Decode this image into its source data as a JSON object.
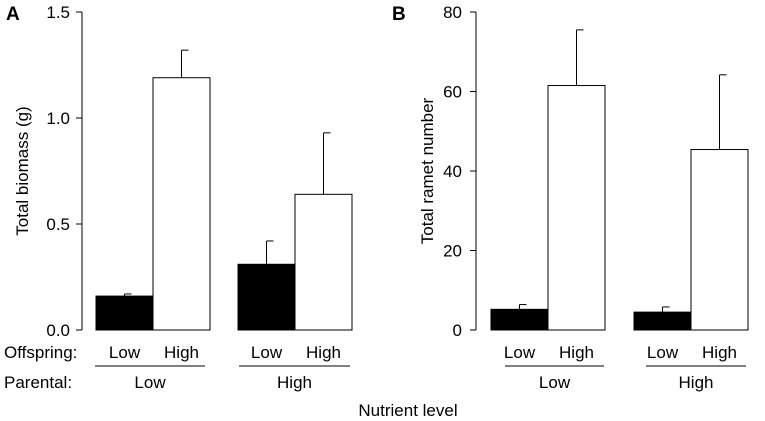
{
  "chart_data": [
    {
      "type": "bar",
      "panel": "A",
      "ylabel": "Total biomass (g)",
      "ylim": [
        0,
        1.5
      ],
      "yticks": [
        0.0,
        0.5,
        1.0,
        1.5
      ],
      "ytick_labels": [
        "0.0",
        "0.5",
        "1.0",
        "1.5"
      ],
      "groups": [
        "Low",
        "High"
      ],
      "offspring": [
        "Low",
        "High"
      ],
      "series": [
        {
          "name": "Low offspring nutrient",
          "color": "#000000",
          "values": [
            0.16,
            0.31
          ],
          "errors": [
            0.01,
            0.11
          ]
        },
        {
          "name": "High offspring nutrient",
          "color": "#ffffff",
          "values": [
            1.19,
            0.64
          ],
          "errors": [
            0.13,
            0.29
          ]
        }
      ]
    },
    {
      "type": "bar",
      "panel": "B",
      "ylabel": "Total ramet number",
      "ylim": [
        0,
        80
      ],
      "yticks": [
        0,
        20,
        40,
        60,
        80
      ],
      "ytick_labels": [
        "0",
        "20",
        "40",
        "60",
        "80"
      ],
      "groups": [
        "Low",
        "High"
      ],
      "offspring": [
        "Low",
        "High"
      ],
      "series": [
        {
          "name": "Low offspring nutrient",
          "color": "#000000",
          "values": [
            5.2,
            4.5
          ],
          "errors": [
            1.2,
            1.3
          ]
        },
        {
          "name": "High offspring nutrient",
          "color": "#ffffff",
          "values": [
            61.5,
            45.4
          ],
          "errors": [
            14.0,
            18.8
          ]
        }
      ]
    }
  ],
  "row_labels": {
    "offspring": "Offspring:",
    "parental": "Parental:"
  },
  "xlabel": "Nutrient level"
}
